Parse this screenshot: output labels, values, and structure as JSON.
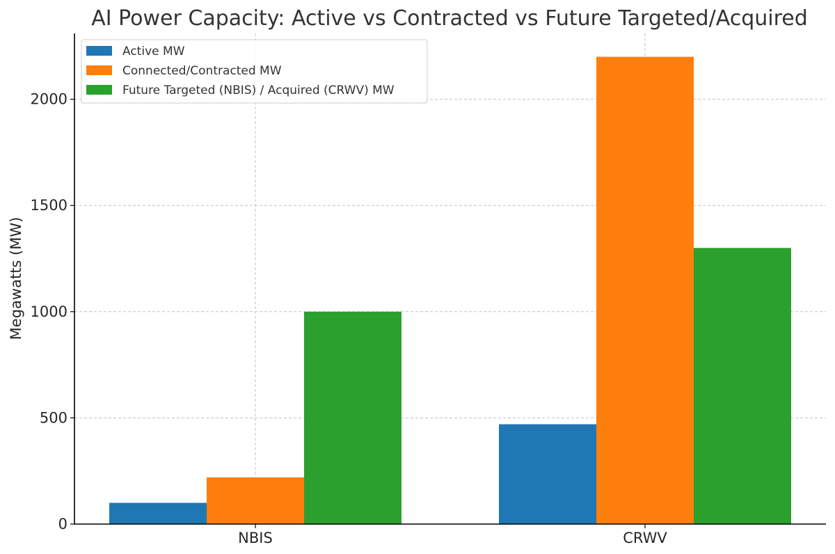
{
  "chart_data": {
    "type": "bar",
    "title": "AI Power Capacity: Active vs Contracted vs Future Targeted/Acquired",
    "xlabel": "",
    "ylabel": "Megawatts (MW)",
    "categories": [
      "NBIS",
      "CRWV"
    ],
    "series": [
      {
        "name": "Active MW",
        "values": [
          100,
          470
        ],
        "color": "#1f77b4"
      },
      {
        "name": "Connected/Contracted MW",
        "values": [
          220,
          2200
        ],
        "color": "#ff7f0e"
      },
      {
        "name": "Future Targeted (NBIS) / Acquired (CRWV) MW",
        "values": [
          1000,
          1300
        ],
        "color": "#2ca02c"
      }
    ],
    "ylim": [
      0,
      2310
    ],
    "yticks": [
      0,
      500,
      1000,
      1500,
      2000
    ],
    "grid": true,
    "legend": "top-left"
  }
}
